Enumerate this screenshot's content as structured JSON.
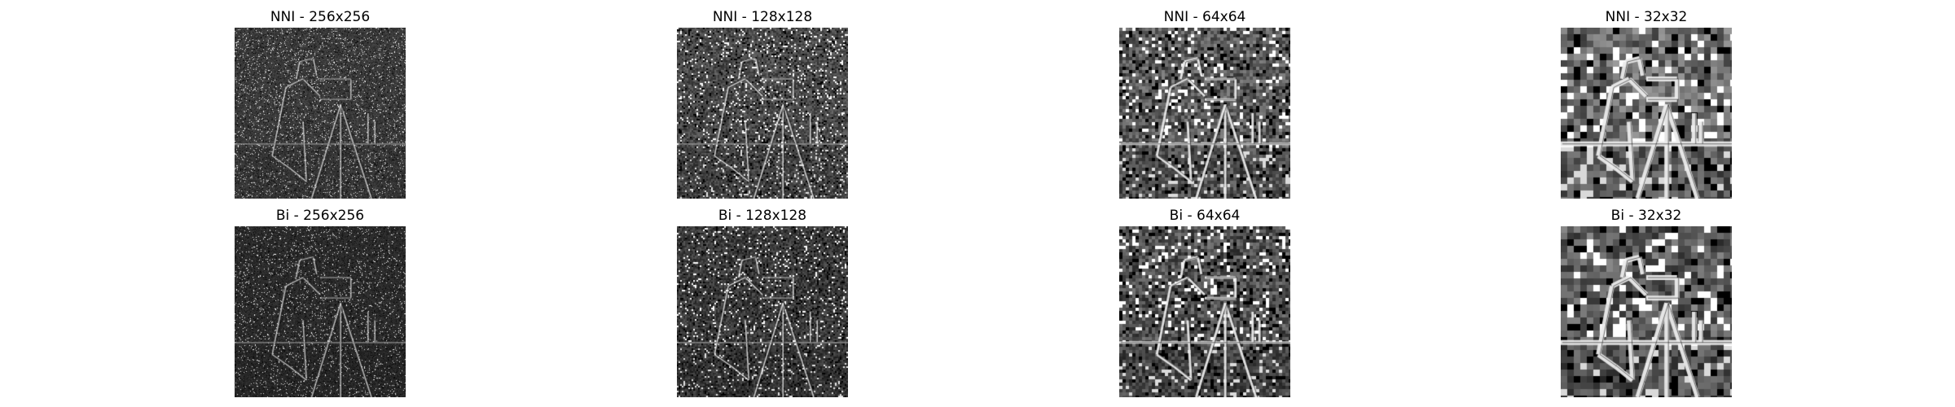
{
  "figure": {
    "panels": [
      {
        "title": "NNI - 256x256",
        "method": "NNI",
        "resolution": 256,
        "noise": 0.3,
        "contrast": 0.55,
        "background": "#3a3a3a"
      },
      {
        "title": "NNI - 128x128",
        "method": "NNI",
        "resolution": 128,
        "noise": 0.45,
        "contrast": 0.75,
        "background": "#4a4a4a"
      },
      {
        "title": "NNI - 64x64",
        "method": "NNI",
        "resolution": 64,
        "noise": 0.62,
        "contrast": 0.95,
        "background": "#5a5a5a"
      },
      {
        "title": "NNI - 32x32",
        "method": "NNI",
        "resolution": 32,
        "noise": 0.7,
        "contrast": 1.0,
        "background": "#6a6a6a"
      },
      {
        "title": "Bi - 256x256",
        "method": "Bi",
        "resolution": 256,
        "noise": 0.25,
        "contrast": 0.5,
        "background": "#2a2a2a"
      },
      {
        "title": "Bi - 128x128",
        "method": "Bi",
        "resolution": 128,
        "noise": 0.42,
        "contrast": 0.72,
        "background": "#3a3a3a"
      },
      {
        "title": "Bi - 64x64",
        "method": "Bi",
        "resolution": 64,
        "noise": 0.6,
        "contrast": 0.95,
        "background": "#505050"
      },
      {
        "title": "Bi - 32x32",
        "method": "Bi",
        "resolution": 32,
        "noise": 0.68,
        "contrast": 1.0,
        "background": "#5a5a5a"
      }
    ]
  }
}
